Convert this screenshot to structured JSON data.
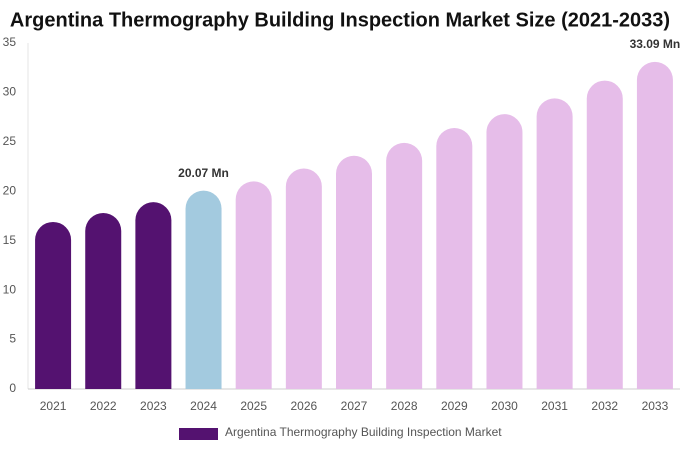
{
  "chart_data": {
    "type": "bar",
    "title": "Argentina Thermography Building Inspection Market Size (2021-2033)",
    "categories": [
      "2021",
      "2022",
      "2023",
      "2024",
      "2025",
      "2026",
      "2027",
      "2028",
      "2029",
      "2030",
      "2031",
      "2032",
      "2033"
    ],
    "series": [
      {
        "name": "Argentina Thermography Building Inspection Market",
        "color": "#541270",
        "values": [
          16.9,
          17.8,
          18.9,
          20.07,
          21.0,
          22.3,
          23.6,
          24.9,
          26.4,
          27.8,
          29.4,
          31.2,
          33.09
        ],
        "value_labels": [
          null,
          null,
          null,
          "20.07 Mn",
          null,
          null,
          null,
          null,
          null,
          null,
          null,
          null,
          "33.09 Mn"
        ],
        "bar_colors": [
          "#541270",
          "#541270",
          "#541270",
          "#a3cadf",
          "#e6bde9",
          "#e6bde9",
          "#e6bde9",
          "#e6bde9",
          "#e6bde9",
          "#e6bde9",
          "#e6bde9",
          "#e6bde9",
          "#e6bde9"
        ]
      }
    ],
    "ylim": [
      0,
      35
    ],
    "yticks": [
      0,
      5,
      10,
      15,
      20,
      25,
      30,
      35
    ],
    "grid": false,
    "legend": "bottom"
  }
}
